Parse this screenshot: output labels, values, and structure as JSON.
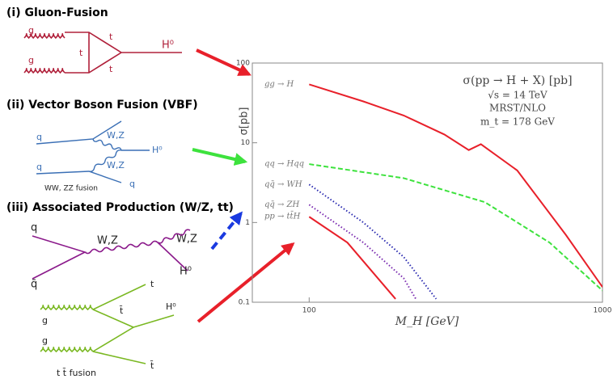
{
  "chart_data": {
    "type": "line",
    "xlabel": "M_H [GeV]",
    "ylabel": "σ[pb]",
    "annotations": [
      "σ(pp → H + X) [pb]",
      "√s = 14 TeV",
      "MRST/NLO",
      "m_t = 178 GeV"
    ],
    "xlim": [
      64,
      1000
    ],
    "ylim": [
      0.1,
      100
    ],
    "xscale": "log",
    "yscale": "log",
    "xticks": [
      100,
      1000
    ],
    "yticks": [
      0.1,
      1,
      10,
      100
    ],
    "series": [
      {
        "name": "gg → H",
        "color": "#e8202a",
        "dash": "solid",
        "x": [
          100,
          153,
          210,
          289,
          350,
          385,
          512,
          750,
          1000
        ],
        "values": [
          54,
          33,
          22,
          12.7,
          8.1,
          9.6,
          4.5,
          0.7,
          0.155
        ]
      },
      {
        "name": "qq → Hqq",
        "color": "#3de23d",
        "dash": "dashed",
        "x": [
          100,
          210,
          397,
          660,
          1000
        ],
        "values": [
          5.4,
          3.6,
          1.8,
          0.56,
          0.14
        ]
      },
      {
        "name": "qq̄ → WH",
        "color": "#2b2bb0",
        "dash": "dotted",
        "x": [
          100,
          153,
          210,
          271
        ],
        "values": [
          3.0,
          1.0,
          0.37,
          0.11
        ]
      },
      {
        "name": "qq̄ → ZH",
        "color": "#7a2bb0",
        "dash": "dotted",
        "x": [
          100,
          153,
          210,
          231
        ],
        "values": [
          1.67,
          0.56,
          0.2,
          0.11
        ]
      },
      {
        "name": "pp → tt̄H",
        "color": "#e8202a",
        "dash": "solid",
        "x": [
          100,
          135,
          197
        ],
        "values": [
          1.18,
          0.56,
          0.11
        ]
      }
    ]
  },
  "diagrams": [
    {
      "title": "(i) Gluon-Fusion",
      "labels": [
        "g",
        "g",
        "t",
        "t",
        "t",
        "H⁰"
      ]
    },
    {
      "title": "(ii) Vector Boson Fusion (VBF)",
      "labels": [
        "q",
        "W,Z",
        "W,Z",
        "H⁰",
        "q",
        "q",
        "WW, ZZ fusion"
      ]
    },
    {
      "title": "(iii) Associated Production (W/Z, tt)",
      "labels": [
        "q",
        "q̄",
        "W,Z",
        "W,Z",
        "H⁰"
      ]
    },
    {
      "labels": [
        "g",
        "g",
        "t",
        "t̄",
        "H⁰",
        "t̄",
        "t t̄ fusion"
      ]
    }
  ]
}
